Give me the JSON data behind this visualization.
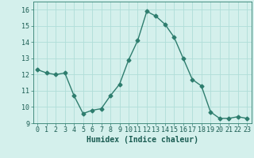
{
  "x": [
    0,
    1,
    2,
    3,
    4,
    5,
    6,
    7,
    8,
    9,
    10,
    11,
    12,
    13,
    14,
    15,
    16,
    17,
    18,
    19,
    20,
    21,
    22,
    23
  ],
  "y": [
    12.3,
    12.1,
    12.0,
    12.1,
    10.7,
    9.6,
    9.8,
    9.9,
    10.7,
    11.4,
    12.9,
    14.1,
    15.9,
    15.6,
    15.1,
    14.3,
    13.0,
    11.7,
    11.3,
    9.7,
    9.3,
    9.3,
    9.4,
    9.3
  ],
  "line_color": "#2e7d6e",
  "marker": "D",
  "markersize": 2.5,
  "linewidth": 1.0,
  "bg_color": "#d4f0ec",
  "grid_color": "#b0ddd8",
  "xlabel": "Humidex (Indice chaleur)",
  "xlabel_fontsize": 7,
  "xlim": [
    -0.5,
    23.5
  ],
  "ylim": [
    9.0,
    16.5
  ],
  "yticks": [
    9,
    10,
    11,
    12,
    13,
    14,
    15,
    16
  ],
  "xticks": [
    0,
    1,
    2,
    3,
    4,
    5,
    6,
    7,
    8,
    9,
    10,
    11,
    12,
    13,
    14,
    15,
    16,
    17,
    18,
    19,
    20,
    21,
    22,
    23
  ],
  "tick_fontsize": 6
}
